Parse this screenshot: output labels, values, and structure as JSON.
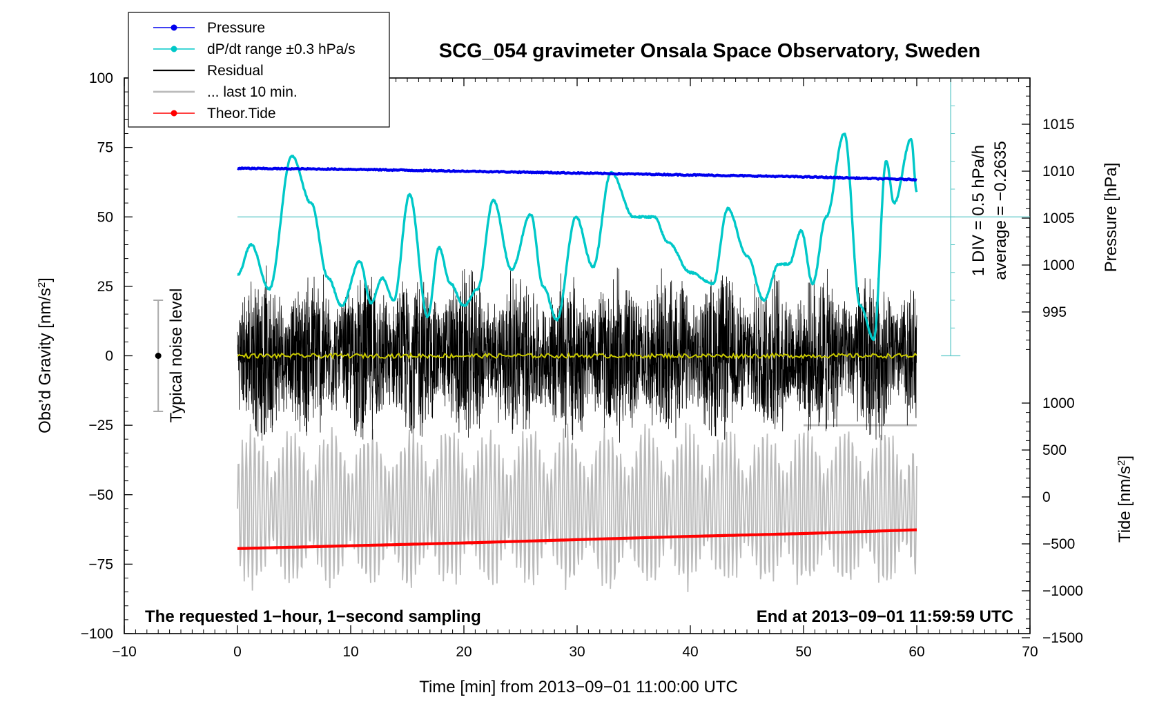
{
  "chart_data": {
    "type": "line",
    "title": "SCG_054 gravimeter Onsala Space Observatory, Sweden",
    "xlabel": "Time [min] from 2013−09−01 11:00:00 UTC",
    "ylabel_left": "Obs’d Gravity [nm/s²]",
    "ylabel_right_pressure": "Pressure [hPa]",
    "ylabel_right_tide": "Tide [nm/s²]",
    "xlim": [
      -10,
      70
    ],
    "ylim": [
      -100,
      100
    ],
    "x_ticks": [
      "−10",
      "0",
      "10",
      "20",
      "30",
      "40",
      "50",
      "60",
      "70"
    ],
    "x_tick_values": [
      -10,
      0,
      10,
      20,
      30,
      40,
      50,
      60,
      70
    ],
    "y_ticks": [
      "100",
      "75",
      "50",
      "25",
      "0",
      "−25",
      "−50",
      "−75",
      "−100"
    ],
    "y_tick_values": [
      100,
      75,
      50,
      25,
      0,
      -25,
      -50,
      -75,
      -100
    ],
    "pressure_axis": {
      "ticks": [
        "1015",
        "1010",
        "1005",
        "1000",
        "995"
      ],
      "tick_values": [
        1015,
        1010,
        1005,
        1000,
        995
      ],
      "range": [
        990,
        1020
      ]
    },
    "tide_axis": {
      "ticks": [
        "1000",
        "500",
        "0",
        "−500",
        "−1000",
        "−1500"
      ],
      "tick_values": [
        1000,
        500,
        0,
        -500,
        -1000,
        -1500
      ],
      "range": [
        -1500,
        1000
      ]
    },
    "dpdt_scale": {
      "label_1": "1 DIV = 0.5 hPa/h",
      "label_2": "average = −0.2635",
      "reference_level": 50
    },
    "legend": [
      {
        "label": "Pressure",
        "color": "#0000ee",
        "marker": true
      },
      {
        "label": "dP/dt range ±0.3 hPa/s",
        "color": "#00c8c8",
        "marker": true
      },
      {
        "label": "Residual",
        "color": "#000000",
        "marker": false
      },
      {
        "label": "... last 10 min.",
        "color": "#bbbbbb",
        "marker": false
      },
      {
        "label": "Theor.Tide",
        "color": "#ff0000",
        "marker": true
      }
    ],
    "noise_label": "Typical noise level",
    "noise_range": [
      -20,
      20
    ],
    "noise_x": -7,
    "footer_left": "The requested 1−hour, 1−second sampling",
    "footer_right": "End at 2013−09−01 11:59:59 UTC",
    "series": [
      {
        "name": "Pressure",
        "axis": "pressure",
        "color": "#0000ee",
        "x": [
          0,
          10,
          20,
          30,
          40,
          50,
          60
        ],
        "values": [
          1010.3,
          1010.2,
          1010.0,
          1009.8,
          1009.6,
          1009.4,
          1009.1
        ]
      },
      {
        "name": "dP/dt range ±0.3 hPa/s",
        "axis": "gravity",
        "color": "#00c8c8",
        "x": [
          0,
          1.2,
          2.8,
          4.8,
          6.5,
          8.0,
          9.2,
          10.8,
          11.8,
          12.8,
          13.8,
          15.2,
          16.8,
          17.8,
          18.8,
          20.0,
          21.2,
          22.6,
          24.2,
          25.9,
          27.0,
          28.2,
          29.9,
          31.4,
          33.0,
          35.0,
          36.8,
          38.0,
          40.0,
          42.0,
          43.3,
          45.0,
          46.5,
          47.8,
          48.7,
          49.8,
          50.8,
          52.0,
          53.6,
          55.0,
          56.2,
          57.3,
          58.0,
          59.5,
          60.0
        ],
        "values": [
          29,
          40,
          24,
          72,
          55,
          28,
          18,
          34,
          19,
          28,
          20,
          58,
          14,
          39,
          26,
          18,
          24,
          56,
          31,
          51,
          25,
          13,
          50,
          32,
          66,
          50,
          50,
          41,
          30,
          26,
          53,
          36,
          20,
          33,
          33,
          45,
          26,
          50,
          80,
          18,
          6,
          70,
          55,
          78,
          59
        ]
      },
      {
        "name": "Residual",
        "axis": "gravity",
        "color": "#000000",
        "x": [
          0,
          60
        ],
        "envelope_amplitude": 28
      },
      {
        "name": "Residual (mean)",
        "axis": "gravity",
        "color": "#c8c800",
        "x": [
          0,
          60
        ],
        "values": [
          0,
          0
        ]
      },
      {
        "name": "... last 10 min.",
        "axis": "gravity",
        "color": "#bbbbbb",
        "x": [
          0,
          60
        ],
        "envelope_center": -55,
        "envelope_amplitude": 32
      },
      {
        "name": "Theor.Tide",
        "axis": "tide",
        "color": "#ff0000",
        "x": [
          0,
          10,
          20,
          30,
          40,
          50,
          60
        ],
        "values": [
          -550,
          -520,
          -490,
          -455,
          -420,
          -390,
          -350
        ]
      }
    ]
  }
}
